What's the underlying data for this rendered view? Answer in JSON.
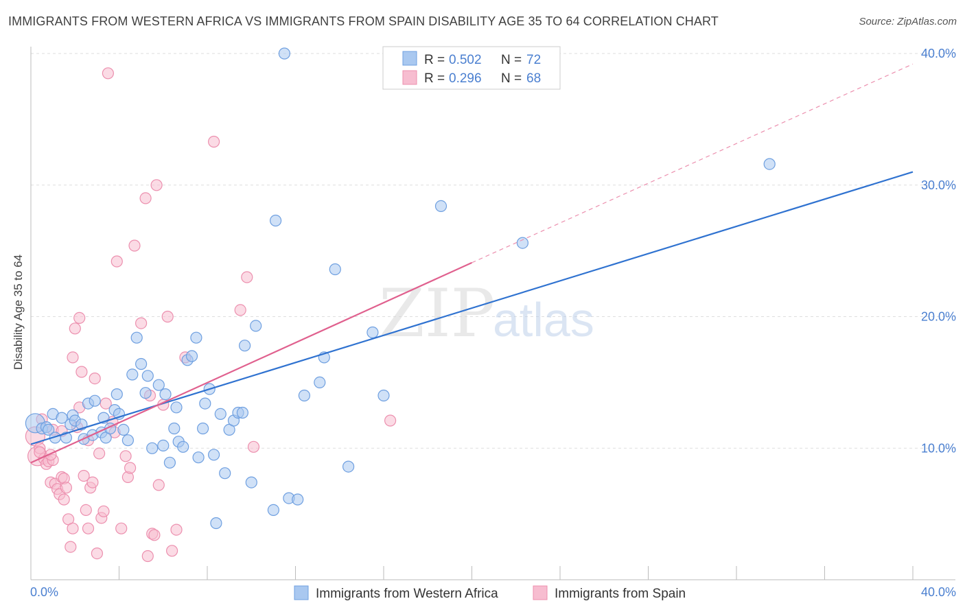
{
  "header": {
    "title": "IMMIGRANTS FROM WESTERN AFRICA VS IMMIGRANTS FROM SPAIN DISABILITY AGE 35 TO 64 CORRELATION CHART",
    "source": "Source: ZipAtlas.com"
  },
  "watermark": {
    "zip": "ZIP",
    "atlas": "atlas"
  },
  "legend": {
    "rows": [
      {
        "r_label": "R = ",
        "r_value": "0.502",
        "n_label": "N = ",
        "n_value": "72"
      },
      {
        "r_label": "R = ",
        "r_value": "0.296",
        "n_label": "N = ",
        "n_value": "68"
      }
    ]
  },
  "colors": {
    "blue_fill": "#a9c8f0",
    "blue_stroke": "#6e9fe0",
    "blue_line": "#2f72d0",
    "pink_fill": "#f7bdd0",
    "pink_stroke": "#ec8fae",
    "pink_line": "#e0608e",
    "grid": "#dddddd",
    "tick_text": "#4a7fd0"
  },
  "chart_data": {
    "type": "scatter",
    "title": "IMMIGRANTS FROM WESTERN AFRICA VS IMMIGRANTS FROM SPAIN DISABILITY AGE 35 TO 64 CORRELATION CHART",
    "xlabel": "",
    "ylabel": "Disability Age 35 to 64",
    "xlim": [
      0,
      40
    ],
    "ylim": [
      0,
      40
    ],
    "x_tick_labels": [
      "0.0%",
      "40.0%"
    ],
    "y_ticks": [
      10,
      20,
      30,
      40
    ],
    "y_tick_labels": [
      "10.0%",
      "20.0%",
      "30.0%",
      "40.0%"
    ],
    "grid": true,
    "legend_position": "top-center",
    "series": [
      {
        "name": "Immigrants from Western Africa",
        "color": "#a9c8f0",
        "R": 0.502,
        "N": 72,
        "trend": {
          "x": [
            0,
            40
          ],
          "y": [
            10.3,
            31.0
          ],
          "style": "solid"
        },
        "points": [
          [
            0.2,
            11.9
          ],
          [
            0.5,
            11.5
          ],
          [
            0.7,
            11.6
          ],
          [
            0.8,
            11.4
          ],
          [
            1.0,
            12.6
          ],
          [
            1.1,
            10.8
          ],
          [
            1.4,
            12.3
          ],
          [
            1.6,
            10.8
          ],
          [
            1.8,
            11.8
          ],
          [
            1.9,
            12.5
          ],
          [
            2.0,
            12.1
          ],
          [
            2.3,
            11.8
          ],
          [
            2.4,
            10.7
          ],
          [
            2.6,
            13.4
          ],
          [
            2.8,
            11.0
          ],
          [
            2.9,
            13.6
          ],
          [
            3.2,
            11.2
          ],
          [
            3.4,
            10.8
          ],
          [
            3.6,
            11.5
          ],
          [
            3.8,
            12.9
          ],
          [
            3.9,
            14.1
          ],
          [
            4.0,
            12.6
          ],
          [
            4.2,
            11.4
          ],
          [
            4.4,
            10.6
          ],
          [
            4.6,
            15.6
          ],
          [
            4.8,
            18.4
          ],
          [
            5.0,
            16.4
          ],
          [
            5.2,
            14.2
          ],
          [
            5.3,
            15.5
          ],
          [
            5.5,
            10.0
          ],
          [
            5.8,
            14.8
          ],
          [
            6.0,
            10.2
          ],
          [
            6.1,
            14.1
          ],
          [
            6.3,
            8.9
          ],
          [
            6.5,
            11.5
          ],
          [
            6.7,
            10.5
          ],
          [
            6.9,
            10.1
          ],
          [
            7.1,
            16.7
          ],
          [
            7.3,
            17.0
          ],
          [
            7.5,
            18.4
          ],
          [
            7.6,
            9.3
          ],
          [
            7.8,
            11.5
          ],
          [
            7.9,
            13.4
          ],
          [
            8.1,
            14.5
          ],
          [
            8.3,
            9.5
          ],
          [
            8.6,
            12.6
          ],
          [
            8.8,
            8.1
          ],
          [
            9.0,
            11.4
          ],
          [
            9.2,
            12.1
          ],
          [
            9.4,
            12.7
          ],
          [
            9.6,
            12.7
          ],
          [
            9.7,
            17.8
          ],
          [
            10.0,
            7.4
          ],
          [
            10.2,
            19.3
          ],
          [
            11.0,
            5.3
          ],
          [
            11.1,
            27.3
          ],
          [
            11.5,
            40.0
          ],
          [
            11.7,
            6.2
          ],
          [
            12.1,
            6.1
          ],
          [
            12.4,
            14.0
          ],
          [
            13.1,
            15.0
          ],
          [
            13.3,
            16.9
          ],
          [
            13.8,
            23.6
          ],
          [
            14.4,
            8.6
          ],
          [
            15.5,
            18.8
          ],
          [
            16.0,
            14.0
          ],
          [
            18.6,
            28.4
          ],
          [
            22.3,
            25.6
          ],
          [
            33.5,
            31.6
          ],
          [
            8.4,
            4.3
          ],
          [
            3.3,
            12.3
          ],
          [
            6.6,
            13.1
          ]
        ]
      },
      {
        "name": "Immigrants from Spain",
        "color": "#f7bdd0",
        "R": 0.296,
        "N": 68,
        "trend": {
          "x": [
            0,
            20
          ],
          "y": [
            8.9,
            24.1
          ],
          "style": "solid",
          "dashed_extension_to": [
            40,
            39.2
          ]
        },
        "points": [
          [
            0.2,
            10.9
          ],
          [
            0.3,
            9.4
          ],
          [
            0.4,
            10.0
          ],
          [
            0.6,
            9.2
          ],
          [
            0.7,
            8.8
          ],
          [
            0.8,
            9.0
          ],
          [
            0.9,
            7.4
          ],
          [
            1.0,
            9.1
          ],
          [
            1.0,
            11.4
          ],
          [
            1.1,
            7.3
          ],
          [
            1.2,
            6.9
          ],
          [
            1.3,
            6.5
          ],
          [
            1.4,
            7.8
          ],
          [
            1.5,
            7.7
          ],
          [
            1.6,
            7.0
          ],
          [
            1.7,
            4.6
          ],
          [
            1.8,
            2.5
          ],
          [
            1.9,
            3.9
          ],
          [
            1.9,
            16.9
          ],
          [
            2.0,
            19.1
          ],
          [
            2.1,
            11.6
          ],
          [
            2.2,
            13.1
          ],
          [
            2.2,
            19.9
          ],
          [
            2.3,
            15.8
          ],
          [
            2.4,
            7.9
          ],
          [
            2.5,
            5.3
          ],
          [
            2.6,
            3.9
          ],
          [
            2.7,
            7.0
          ],
          [
            2.8,
            7.4
          ],
          [
            2.9,
            15.3
          ],
          [
            3.0,
            2.0
          ],
          [
            3.1,
            9.6
          ],
          [
            3.2,
            4.7
          ],
          [
            3.3,
            5.2
          ],
          [
            3.4,
            13.4
          ],
          [
            3.5,
            38.5
          ],
          [
            3.7,
            12.0
          ],
          [
            3.8,
            11.2
          ],
          [
            3.9,
            24.2
          ],
          [
            4.1,
            3.9
          ],
          [
            4.3,
            9.4
          ],
          [
            4.4,
            7.8
          ],
          [
            4.5,
            8.5
          ],
          [
            4.7,
            25.4
          ],
          [
            5.0,
            19.5
          ],
          [
            5.2,
            29.0
          ],
          [
            5.3,
            1.8
          ],
          [
            5.4,
            14.0
          ],
          [
            5.5,
            3.5
          ],
          [
            5.6,
            3.4
          ],
          [
            5.7,
            30.0
          ],
          [
            5.8,
            7.2
          ],
          [
            6.0,
            13.3
          ],
          [
            6.2,
            20.0
          ],
          [
            6.4,
            2.2
          ],
          [
            6.6,
            3.8
          ],
          [
            7.0,
            16.9
          ],
          [
            8.3,
            33.3
          ],
          [
            9.5,
            20.5
          ],
          [
            9.8,
            23.0
          ],
          [
            10.1,
            10.1
          ],
          [
            16.3,
            12.1
          ],
          [
            0.5,
            12.2
          ],
          [
            1.4,
            11.3
          ],
          [
            2.6,
            10.6
          ],
          [
            0.9,
            9.5
          ],
          [
            1.5,
            6.1
          ],
          [
            0.4,
            9.7
          ]
        ]
      }
    ]
  },
  "bottom_legend": {
    "items": [
      "Immigrants from Western Africa",
      "Immigrants from Spain"
    ]
  }
}
